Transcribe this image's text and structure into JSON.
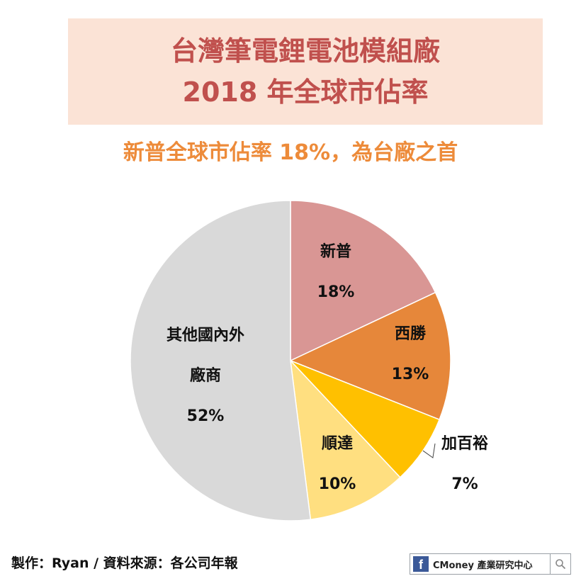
{
  "header": {
    "title_line1": "台灣筆電鋰電池模組廠",
    "title_line2": "2018 年全球市佔率",
    "subtitle": "新普全球市佔率 18%，為台廠之首"
  },
  "chart_data": {
    "type": "pie",
    "title": "台灣筆電鋰電池模組廠 2018 年全球市佔率",
    "slices": [
      {
        "label_lines": [
          "新普"
        ],
        "value": 18,
        "value_label": "18%",
        "color": "#d99694"
      },
      {
        "label_lines": [
          "西勝"
        ],
        "value": 13,
        "value_label": "13%",
        "color": "#e6873a"
      },
      {
        "label_lines": [
          "加百裕"
        ],
        "value": 7,
        "value_label": "7%",
        "color": "#ffc000"
      },
      {
        "label_lines": [
          "順達"
        ],
        "value": 10,
        "value_label": "10%",
        "color": "#ffdf80"
      },
      {
        "label_lines": [
          "其他國內外",
          "廠商"
        ],
        "value": 52,
        "value_label": "52%",
        "color": "#d9d9d9"
      }
    ],
    "start_angle": "12 o'clock",
    "direction": "clockwise",
    "legend": "none"
  },
  "footer": {
    "credit": "製作：Ryan / 資料來源：各公司年報"
  },
  "brand": {
    "text": "CMoney 產業研究中心",
    "fb_letter": "f",
    "icons": [
      "facebook-icon",
      "search-icon"
    ]
  }
}
